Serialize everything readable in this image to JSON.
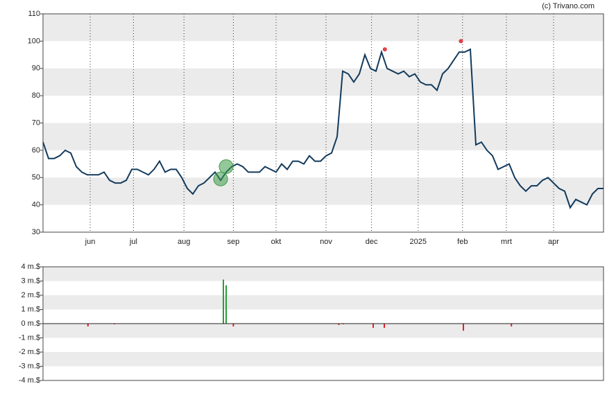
{
  "credit": "(c) Trivano.com",
  "chart_data": [
    {
      "type": "line",
      "xlim": [
        0,
        101
      ],
      "xticks": [
        {
          "value": 8.5,
          "label": "jun"
        },
        {
          "value": 16.3,
          "label": "jul"
        },
        {
          "value": 25.4,
          "label": "aug"
        },
        {
          "value": 34.3,
          "label": "sep"
        },
        {
          "value": 42,
          "label": "okt"
        },
        {
          "value": 51,
          "label": "nov"
        },
        {
          "value": 59.2,
          "label": "dec"
        },
        {
          "value": 67.6,
          "label": "2025"
        },
        {
          "value": 75.6,
          "label": "feb"
        },
        {
          "value": 83.5,
          "label": "mrt"
        },
        {
          "value": 92,
          "label": "apr"
        }
      ],
      "ylim": [
        30,
        110
      ],
      "yticks": [
        30,
        40,
        50,
        60,
        70,
        80,
        90,
        100,
        110
      ],
      "grid": true,
      "series": [
        {
          "color": "#123a5c",
          "values": [
            63,
            57,
            57,
            58,
            60,
            59,
            54,
            52,
            51,
            51,
            51,
            52,
            49,
            48,
            48,
            49,
            53,
            53,
            52,
            51,
            53,
            56,
            52,
            53,
            53,
            50,
            46,
            44,
            47,
            48,
            50,
            52,
            49,
            52,
            54,
            55,
            54,
            52,
            52,
            52,
            54,
            53,
            52,
            55,
            53,
            56,
            56,
            55,
            58,
            56,
            56,
            58,
            59,
            65,
            89,
            88,
            85,
            88,
            95,
            90,
            89,
            96,
            90,
            89,
            88,
            89,
            87,
            88,
            85,
            84,
            84,
            82,
            88,
            90,
            93,
            96,
            96,
            97,
            62,
            63,
            60,
            58,
            53,
            54,
            55,
            50,
            47,
            45,
            47,
            47,
            49,
            50,
            48,
            46,
            45,
            39,
            42,
            41,
            40,
            44,
            46,
            46
          ]
        }
      ],
      "markers": [
        {
          "x": 32,
          "y": 49.5,
          "color": "#3d9a48"
        },
        {
          "x": 33,
          "y": 54,
          "color": "#3d9a48"
        },
        {
          "x": 61.6,
          "y": 97,
          "color": "#e0303a"
        },
        {
          "x": 75.3,
          "y": 100,
          "color": "#e0303a"
        }
      ]
    },
    {
      "type": "bar",
      "xlim": [
        0,
        101
      ],
      "ylim": [
        -4,
        4
      ],
      "yticks": [
        {
          "value": 4,
          "label": "4 m.$"
        },
        {
          "value": 3,
          "label": "3 m.$"
        },
        {
          "value": 2,
          "label": "2 m.$"
        },
        {
          "value": 1,
          "label": "1 m.$"
        },
        {
          "value": 0,
          "label": "0 m.$"
        },
        {
          "value": -1,
          "label": "-1 m.$"
        },
        {
          "value": -2,
          "label": "-2 m.$"
        },
        {
          "value": -3,
          "label": "-3 m.$"
        },
        {
          "value": -4,
          "label": "-4 m.$"
        }
      ],
      "grid": true,
      "positive_color": "#2a9d3a",
      "negative_color": "#e0202a",
      "x": [
        8.1,
        12.9,
        32.5,
        33,
        34.3,
        53.3,
        54.1,
        59.5,
        61.5,
        75.75,
        84.4
      ],
      "values": [
        -0.2,
        -0.05,
        3.1,
        2.7,
        -0.2,
        -0.1,
        -0.05,
        -0.3,
        -0.3,
        -0.5,
        -0.2
      ]
    }
  ]
}
